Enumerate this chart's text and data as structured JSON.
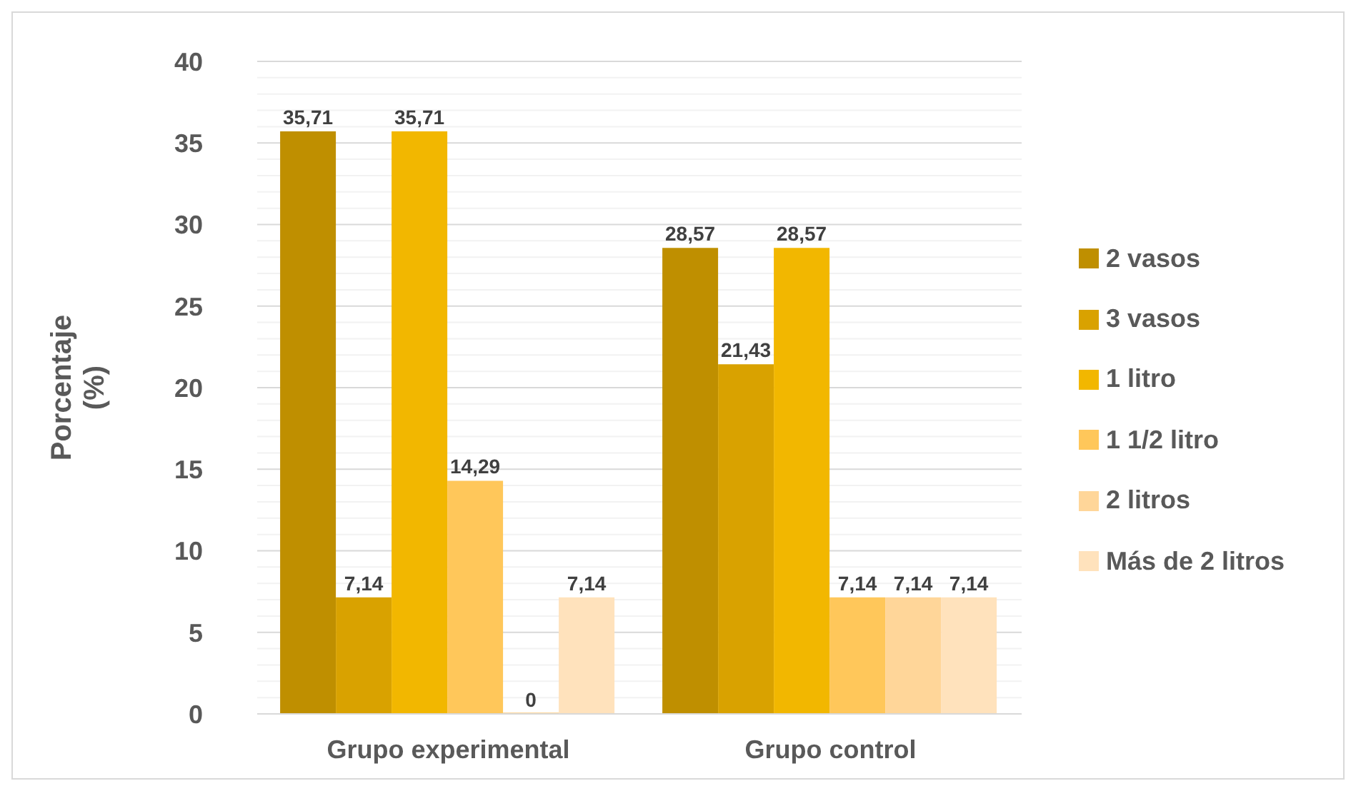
{
  "chart_data": {
    "type": "bar",
    "ylabel": "Porcentaje (%)",
    "categories": [
      "Grupo experimental",
      "Grupo control"
    ],
    "series": [
      {
        "name": "2 vasos",
        "color": "#bf8f00",
        "values": [
          35.71,
          28.57
        ],
        "value_labels": [
          "35,71",
          "28,57"
        ]
      },
      {
        "name": "3 vasos",
        "color": "#d9a200",
        "values": [
          7.14,
          21.43
        ],
        "value_labels": [
          "7,14",
          "21,43"
        ]
      },
      {
        "name": "1 litro",
        "color": "#f2b700",
        "values": [
          35.71,
          28.57
        ],
        "value_labels": [
          "35,71",
          "28,57"
        ]
      },
      {
        "name": "1 1/2 litro",
        "color": "#ffc75a",
        "values": [
          14.29,
          7.14
        ],
        "value_labels": [
          "14,29",
          "7,14"
        ]
      },
      {
        "name": "2 litros",
        "color": "#ffd699",
        "values": [
          0,
          7.14
        ],
        "value_labels": [
          "0",
          "7,14"
        ]
      },
      {
        "name": "Más de 2 litros",
        "color": "#ffe2bc",
        "values": [
          7.14,
          7.14
        ],
        "value_labels": [
          "7,14",
          "7,14"
        ]
      }
    ],
    "ylim": [
      0,
      40
    ],
    "yticks": [
      0,
      {
        "value": 1,
        "label": null
      },
      {
        "value": 2,
        "label": null
      },
      {
        "value": 3,
        "label": null
      },
      {
        "value": 4,
        "label": null
      },
      5,
      {
        "value": 6,
        "label": null
      },
      {
        "value": 7,
        "label": null
      },
      {
        "value": 8,
        "label": null
      },
      {
        "value": 9,
        "label": null
      },
      10,
      {
        "value": 11,
        "label": null
      },
      {
        "value": 12,
        "label": null
      },
      {
        "value": 13,
        "label": null
      },
      {
        "value": 14,
        "label": null
      },
      15,
      {
        "value": 16,
        "label": null
      },
      {
        "value": 17,
        "label": null
      },
      {
        "value": 18,
        "label": null
      },
      {
        "value": 19,
        "label": null
      },
      20,
      {
        "value": 21,
        "label": null
      },
      {
        "value": 22,
        "label": null
      },
      {
        "value": 23,
        "label": null
      },
      {
        "value": 24,
        "label": null
      },
      25,
      {
        "value": 26,
        "label": null
      },
      {
        "value": 27,
        "label": null
      },
      {
        "value": 28,
        "label": null
      },
      {
        "value": 29,
        "label": null
      },
      30,
      {
        "value": 31,
        "label": null
      },
      {
        "value": 32,
        "label": null
      },
      {
        "value": 33,
        "label": null
      },
      {
        "value": 34,
        "label": null
      },
      35,
      {
        "value": 36,
        "label": null
      },
      {
        "value": 37,
        "label": null
      },
      {
        "value": 38,
        "label": null
      },
      {
        "value": 39,
        "label": null
      },
      40
    ],
    "grid": "y",
    "legend": "right"
  }
}
